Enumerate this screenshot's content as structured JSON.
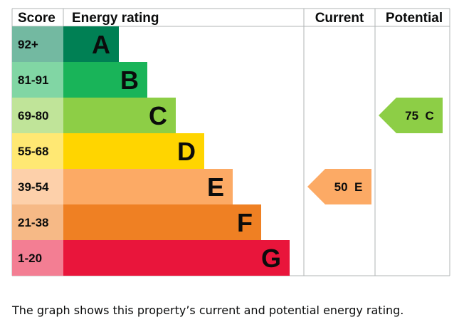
{
  "chart_data": {
    "type": "bar",
    "title": "",
    "headers": {
      "score": "Score",
      "rating": "Energy rating",
      "current": "Current",
      "potential": "Potential"
    },
    "bands": [
      {
        "score": "92+",
        "letter": "A",
        "color": "#008054"
      },
      {
        "score": "81-91",
        "letter": "B",
        "color": "#19b459"
      },
      {
        "score": "69-80",
        "letter": "C",
        "color": "#8dce46"
      },
      {
        "score": "55-68",
        "letter": "D",
        "color": "#ffd500"
      },
      {
        "score": "39-54",
        "letter": "E",
        "color": "#fcaa65"
      },
      {
        "score": "21-38",
        "letter": "F",
        "color": "#ef8023"
      },
      {
        "score": "1-20",
        "letter": "G",
        "color": "#e9153b"
      }
    ],
    "current": {
      "value": 50,
      "letter": "E",
      "label": "50  E",
      "color": "#fcaa65"
    },
    "potential": {
      "value": 75,
      "letter": "C",
      "label": "75  C",
      "color": "#8dce46"
    }
  },
  "caption": "The graph shows this property’s current and potential energy rating."
}
